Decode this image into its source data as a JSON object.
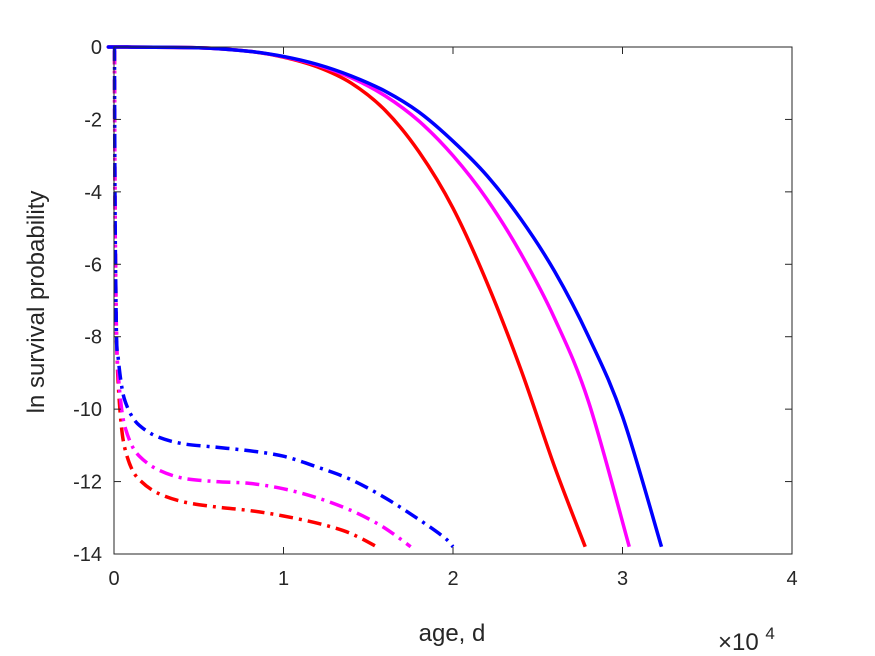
{
  "chart_data": {
    "type": "line",
    "title": "",
    "xlabel": "age, d",
    "ylabel": "ln survival probability",
    "x_multiplier_base": "×10",
    "x_multiplier_exp": "4",
    "xlim": [
      0,
      40000
    ],
    "ylim": [
      -14,
      0
    ],
    "xticks": [
      0,
      10000,
      20000,
      30000,
      40000
    ],
    "xtick_labels": [
      "0",
      "1",
      "2",
      "3",
      "4"
    ],
    "yticks": [
      0,
      -2,
      -4,
      -6,
      -8,
      -10,
      -12,
      -14
    ],
    "ytick_labels": [
      "0",
      "-2",
      "-4",
      "-6",
      "-8",
      "-10",
      "-12",
      "-14"
    ],
    "grid": false,
    "legend": "none",
    "series": [
      {
        "color": "#ff0000",
        "style": "solid",
        "x": [
          0,
          50,
          5000,
          8000,
          10000,
          12000,
          14000,
          16000,
          18000,
          20000,
          22000,
          24000,
          26000,
          27800
        ],
        "y": [
          0,
          0,
          -0.02,
          -0.12,
          -0.28,
          -0.55,
          -1.0,
          -1.75,
          -2.9,
          -4.45,
          -6.5,
          -8.9,
          -11.6,
          -13.8
        ]
      },
      {
        "color": "#ff00ff",
        "style": "solid",
        "x": [
          0,
          50,
          5000,
          8000,
          10000,
          12000,
          14000,
          16000,
          18000,
          20000,
          22000,
          24000,
          26000,
          28000,
          30400
        ],
        "y": [
          0,
          0,
          -0.02,
          -0.12,
          -0.27,
          -0.5,
          -0.85,
          -1.35,
          -2.05,
          -3.0,
          -4.2,
          -5.7,
          -7.5,
          -9.8,
          -13.8
        ]
      },
      {
        "color": "#0000ff",
        "style": "solid",
        "x": [
          0,
          50,
          5000,
          8000,
          10000,
          12000,
          14000,
          16000,
          18000,
          20000,
          22000,
          24000,
          26000,
          28000,
          30000,
          32300
        ],
        "y": [
          0,
          0,
          -0.02,
          -0.12,
          -0.26,
          -0.48,
          -0.8,
          -1.22,
          -1.8,
          -2.6,
          -3.55,
          -4.75,
          -6.2,
          -8.0,
          -10.2,
          -13.8
        ]
      },
      {
        "color": "#ff0000",
        "style": "dashdot",
        "x": [
          30,
          40,
          70,
          150,
          250,
          400,
          600,
          1000,
          1500,
          2500,
          4000,
          6000,
          8000,
          10000,
          12000,
          13500,
          14500,
          15500
        ],
        "y": [
          -0.1,
          -2,
          -5,
          -8,
          -9.3,
          -10.3,
          -11.0,
          -11.6,
          -11.95,
          -12.3,
          -12.55,
          -12.7,
          -12.8,
          -12.95,
          -13.15,
          -13.35,
          -13.55,
          -13.8
        ]
      },
      {
        "color": "#ff00ff",
        "style": "dashdot",
        "x": [
          30,
          40,
          70,
          150,
          250,
          400,
          600,
          1000,
          1500,
          2500,
          4000,
          6000,
          8000,
          10000,
          12000,
          14000,
          15500,
          16500,
          17500
        ],
        "y": [
          -0.1,
          -2,
          -5,
          -8,
          -9.0,
          -9.8,
          -10.4,
          -10.95,
          -11.3,
          -11.65,
          -11.9,
          -12.0,
          -12.05,
          -12.2,
          -12.45,
          -12.8,
          -13.15,
          -13.45,
          -13.8
        ]
      },
      {
        "color": "#0000ff",
        "style": "dashdot",
        "x": [
          30,
          40,
          70,
          150,
          250,
          400,
          600,
          1000,
          1500,
          2500,
          4000,
          6000,
          8000,
          10000,
          12000,
          14000,
          16000,
          18000,
          19500,
          20000
        ],
        "y": [
          0,
          -2,
          -5,
          -8,
          -8.6,
          -9.2,
          -9.7,
          -10.15,
          -10.45,
          -10.75,
          -10.95,
          -11.05,
          -11.15,
          -11.3,
          -11.6,
          -11.95,
          -12.45,
          -13.05,
          -13.55,
          -13.8
        ]
      }
    ]
  }
}
